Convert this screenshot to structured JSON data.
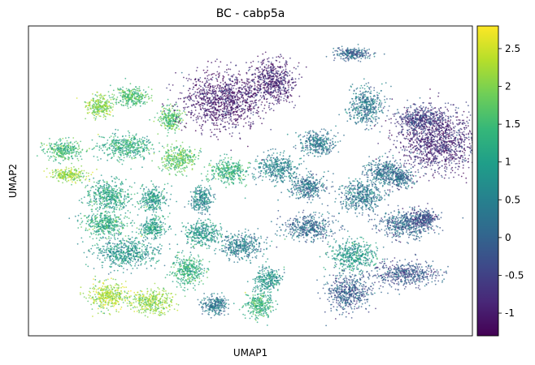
{
  "chart_data": {
    "type": "scatter",
    "title": "BC - cabp5a",
    "xlabel": "UMAP1",
    "ylabel": "UMAP2",
    "colormap": "viridis",
    "colorbar": {
      "range": [
        -1.3,
        2.8
      ],
      "ticks": [
        -1,
        -0.5,
        0,
        0.5,
        1,
        1.5,
        2,
        2.5
      ],
      "tick_labels": [
        "-1",
        "-0.5",
        "0",
        "0.5",
        "1",
        "1.5",
        "2",
        "2.5"
      ]
    },
    "axes_ticks": false,
    "grid": false,
    "clusters": [
      {
        "x": 0.16,
        "y": 0.74,
        "rx": 0.03,
        "ry": 0.035,
        "value": 2.0
      },
      {
        "x": 0.23,
        "y": 0.77,
        "rx": 0.04,
        "ry": 0.03,
        "value": 1.5
      },
      {
        "x": 0.32,
        "y": 0.7,
        "rx": 0.025,
        "ry": 0.04,
        "value": 1.6
      },
      {
        "x": 0.08,
        "y": 0.6,
        "rx": 0.04,
        "ry": 0.03,
        "value": 1.4
      },
      {
        "x": 0.22,
        "y": 0.61,
        "rx": 0.06,
        "ry": 0.04,
        "value": 1.2
      },
      {
        "x": 0.34,
        "y": 0.57,
        "rx": 0.04,
        "ry": 0.04,
        "value": 1.7
      },
      {
        "x": 0.09,
        "y": 0.52,
        "rx": 0.04,
        "ry": 0.02,
        "value": 2.1
      },
      {
        "x": 0.45,
        "y": 0.53,
        "rx": 0.04,
        "ry": 0.04,
        "value": 1.3
      },
      {
        "x": 0.18,
        "y": 0.45,
        "rx": 0.05,
        "ry": 0.05,
        "value": 1.1
      },
      {
        "x": 0.28,
        "y": 0.44,
        "rx": 0.03,
        "ry": 0.04,
        "value": 0.9
      },
      {
        "x": 0.39,
        "y": 0.44,
        "rx": 0.025,
        "ry": 0.04,
        "value": 0.6
      },
      {
        "x": 0.17,
        "y": 0.36,
        "rx": 0.05,
        "ry": 0.04,
        "value": 1.2
      },
      {
        "x": 0.28,
        "y": 0.35,
        "rx": 0.03,
        "ry": 0.03,
        "value": 1.0
      },
      {
        "x": 0.39,
        "y": 0.33,
        "rx": 0.04,
        "ry": 0.04,
        "value": 0.9
      },
      {
        "x": 0.22,
        "y": 0.27,
        "rx": 0.07,
        "ry": 0.05,
        "value": 0.8
      },
      {
        "x": 0.36,
        "y": 0.21,
        "rx": 0.035,
        "ry": 0.05,
        "value": 1.3
      },
      {
        "x": 0.18,
        "y": 0.13,
        "rx": 0.045,
        "ry": 0.045,
        "value": 2.2
      },
      {
        "x": 0.28,
        "y": 0.11,
        "rx": 0.045,
        "ry": 0.04,
        "value": 2.1
      },
      {
        "x": 0.42,
        "y": 0.1,
        "rx": 0.03,
        "ry": 0.03,
        "value": 0.3
      },
      {
        "x": 0.52,
        "y": 0.1,
        "rx": 0.03,
        "ry": 0.04,
        "value": 1.3
      },
      {
        "x": 0.54,
        "y": 0.18,
        "rx": 0.03,
        "ry": 0.04,
        "value": 0.8
      },
      {
        "x": 0.48,
        "y": 0.29,
        "rx": 0.05,
        "ry": 0.04,
        "value": 0.4
      },
      {
        "x": 0.56,
        "y": 0.54,
        "rx": 0.045,
        "ry": 0.045,
        "value": 0.5
      },
      {
        "x": 0.65,
        "y": 0.62,
        "rx": 0.04,
        "ry": 0.04,
        "value": 0.3
      },
      {
        "x": 0.63,
        "y": 0.48,
        "rx": 0.04,
        "ry": 0.04,
        "value": 0.2
      },
      {
        "x": 0.75,
        "y": 0.45,
        "rx": 0.05,
        "ry": 0.05,
        "value": 0.3
      },
      {
        "x": 0.63,
        "y": 0.35,
        "rx": 0.06,
        "ry": 0.04,
        "value": 0.1
      },
      {
        "x": 0.73,
        "y": 0.26,
        "rx": 0.05,
        "ry": 0.05,
        "value": 0.9
      },
      {
        "x": 0.72,
        "y": 0.14,
        "rx": 0.05,
        "ry": 0.06,
        "value": -0.1
      },
      {
        "x": 0.85,
        "y": 0.2,
        "rx": 0.07,
        "ry": 0.04,
        "value": -0.2
      },
      {
        "x": 0.85,
        "y": 0.36,
        "rx": 0.06,
        "ry": 0.045,
        "value": 0.0
      },
      {
        "x": 0.8,
        "y": 0.53,
        "rx": 0.04,
        "ry": 0.04,
        "value": 0.2
      },
      {
        "x": 0.44,
        "y": 0.76,
        "rx": 0.09,
        "ry": 0.09,
        "value": -1.0
      },
      {
        "x": 0.55,
        "y": 0.82,
        "rx": 0.05,
        "ry": 0.07,
        "value": -0.9
      },
      {
        "x": 0.76,
        "y": 0.74,
        "rx": 0.04,
        "ry": 0.06,
        "value": 0.3
      },
      {
        "x": 0.92,
        "y": 0.63,
        "rx": 0.09,
        "ry": 0.1,
        "value": -0.8
      },
      {
        "x": 0.88,
        "y": 0.7,
        "rx": 0.05,
        "ry": 0.04,
        "value": -0.5
      },
      {
        "x": 0.73,
        "y": 0.91,
        "rx": 0.04,
        "ry": 0.02,
        "value": 0.0
      },
      {
        "x": 0.89,
        "y": 0.38,
        "rx": 0.03,
        "ry": 0.03,
        "value": -0.3
      },
      {
        "x": 0.84,
        "y": 0.51,
        "rx": 0.025,
        "ry": 0.03,
        "value": 0.1
      }
    ]
  }
}
